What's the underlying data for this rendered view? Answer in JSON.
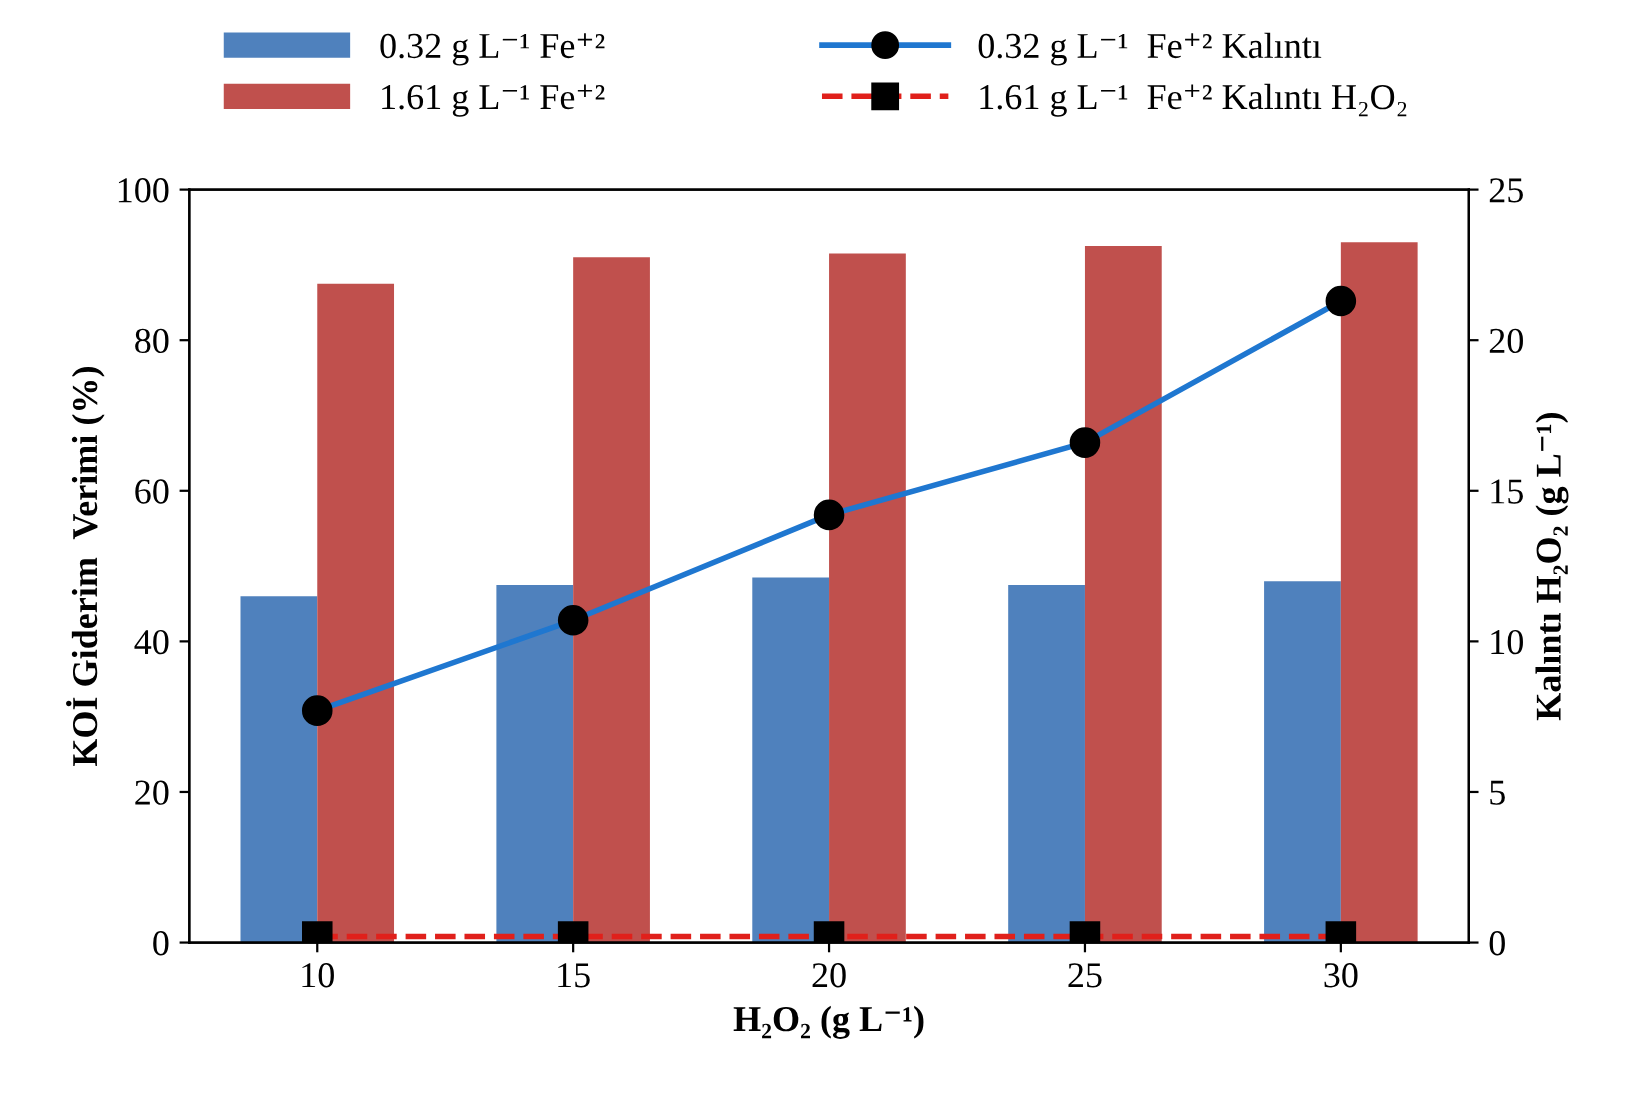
{
  "chart_data": {
    "type": "bar",
    "categories": [
      "10",
      "15",
      "20",
      "25",
      "30"
    ],
    "series": [
      {
        "name": "0.32 g L⁻¹ Fe⁺²",
        "color": "#4f81bd",
        "values": [
          46,
          47.5,
          48.5,
          47.5,
          48
        ]
      },
      {
        "name": "1.61 g L⁻¹ Fe⁺²",
        "color": "#c0504d",
        "values": [
          87.5,
          91,
          91.5,
          92.5,
          93
        ]
      },
      {
        "name": "0.32 g L⁻¹  Fe⁺² Kalıntı",
        "type": "line",
        "axis": "y2",
        "color": "#1f77d0",
        "marker": "circle",
        "line_style": "solid",
        "values": [
          7.7,
          10.7,
          14.2,
          16.6,
          21.3
        ]
      },
      {
        "name": "1.61 g L⁻¹  Fe⁺² Kalıntı H₂O₂",
        "type": "line",
        "axis": "y2",
        "color": "#e0201b",
        "marker": "square",
        "line_style": "dashed",
        "values": [
          0.2,
          0.2,
          0.2,
          0.2,
          0.2
        ]
      }
    ],
    "xlabel": "H₂O₂ (g L⁻¹)",
    "ylabel": "KOİ Giderim  Verimi (%)",
    "y2label": "Kalıntı H₂O₂ (g L⁻¹)",
    "ylim": [
      0,
      100
    ],
    "yticks": [
      0,
      20,
      40,
      60,
      80,
      100
    ],
    "y2lim": [
      0,
      25
    ],
    "y2ticks": [
      0,
      5,
      10,
      15,
      20,
      25
    ],
    "legend": "top",
    "grid": false
  }
}
